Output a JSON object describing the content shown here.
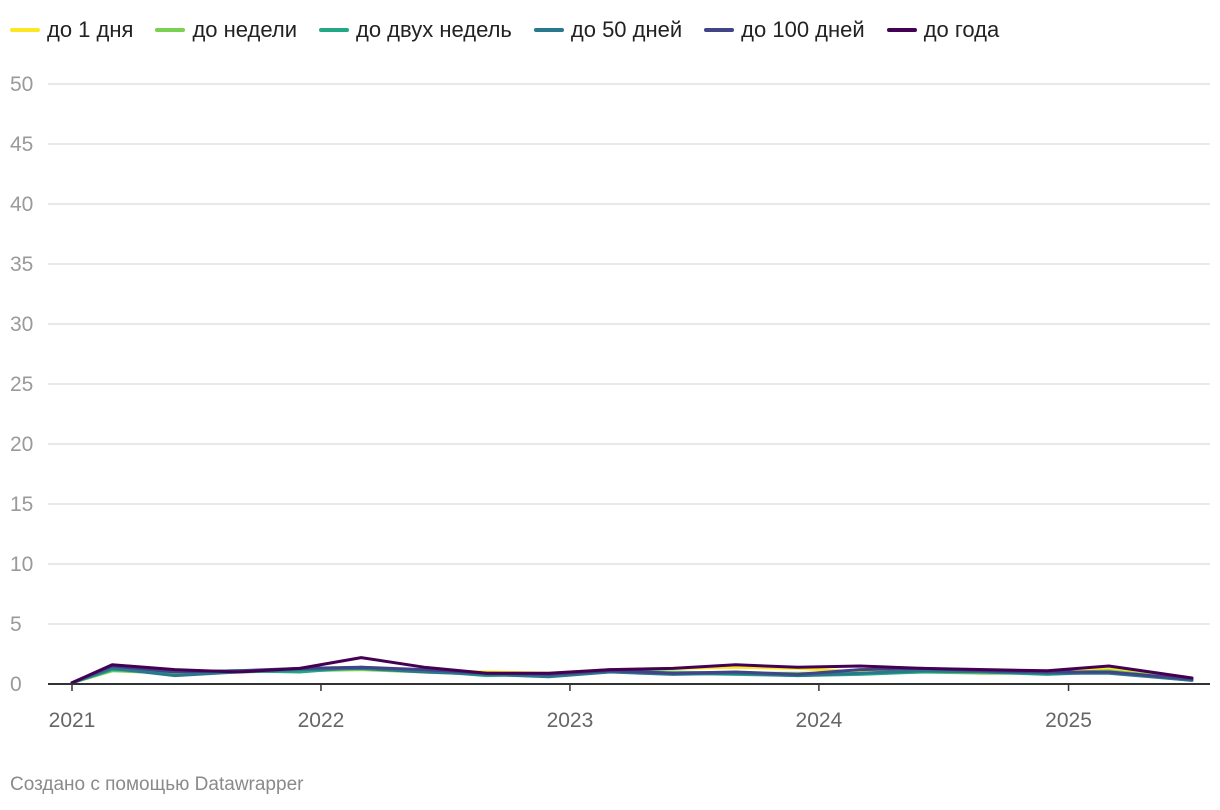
{
  "chart_data": {
    "type": "line",
    "title": "",
    "xlabel": "",
    "ylabel": "",
    "x_range": [
      "2021-01-01",
      "2025-07-01"
    ],
    "ylim": [
      0,
      50
    ],
    "y_ticks": [
      "0",
      "5",
      "10",
      "15",
      "20",
      "25",
      "30",
      "35",
      "40",
      "45",
      "50"
    ],
    "x_ticks": [
      "2021",
      "2022",
      "2023",
      "2024",
      "2025"
    ],
    "grid": true,
    "legend_position": "top-left",
    "series": [
      {
        "name": "до 1 дня",
        "color": "#fde725",
        "points": [
          [
            "2021-01-01",
            0.1
          ],
          [
            "2021-03-01",
            1.2
          ],
          [
            "2021-06-01",
            1.0
          ],
          [
            "2021-09-01",
            1.1
          ],
          [
            "2021-12-01",
            1.2
          ],
          [
            "2022-03-01",
            1.3
          ],
          [
            "2022-06-01",
            1.1
          ],
          [
            "2022-09-01",
            1.0
          ],
          [
            "2022-12-01",
            0.9
          ],
          [
            "2023-03-01",
            1.2
          ],
          [
            "2023-06-01",
            1.3
          ],
          [
            "2023-09-01",
            1.4
          ],
          [
            "2023-12-01",
            1.3
          ],
          [
            "2024-03-01",
            1.0
          ],
          [
            "2024-06-01",
            1.1
          ],
          [
            "2024-09-01",
            1.0
          ],
          [
            "2024-12-01",
            1.0
          ],
          [
            "2025-03-01",
            1.3
          ],
          [
            "2025-07-01",
            0.5
          ]
        ]
      },
      {
        "name": "до недели",
        "color": "#7ad151",
        "points": [
          [
            "2021-01-01",
            0.1
          ],
          [
            "2021-03-01",
            1.1
          ],
          [
            "2021-06-01",
            0.9
          ],
          [
            "2021-09-01",
            1.0
          ],
          [
            "2021-12-01",
            1.1
          ],
          [
            "2022-03-01",
            1.2
          ],
          [
            "2022-06-01",
            1.0
          ],
          [
            "2022-09-01",
            0.8
          ],
          [
            "2022-12-01",
            0.8
          ],
          [
            "2023-03-01",
            1.1
          ],
          [
            "2023-06-01",
            1.0
          ],
          [
            "2023-09-01",
            0.9
          ],
          [
            "2023-12-01",
            0.9
          ],
          [
            "2024-03-01",
            0.9
          ],
          [
            "2024-06-01",
            1.0
          ],
          [
            "2024-09-01",
            0.9
          ],
          [
            "2024-12-01",
            0.9
          ],
          [
            "2025-03-01",
            1.1
          ],
          [
            "2025-07-01",
            0.4
          ]
        ]
      },
      {
        "name": "до двух недель",
        "color": "#22a884",
        "points": [
          [
            "2021-01-01",
            0.1
          ],
          [
            "2021-03-01",
            1.2
          ],
          [
            "2021-06-01",
            1.0
          ],
          [
            "2021-09-01",
            1.1
          ],
          [
            "2021-12-01",
            1.0
          ],
          [
            "2022-03-01",
            1.4
          ],
          [
            "2022-06-01",
            1.1
          ],
          [
            "2022-09-01",
            0.7
          ],
          [
            "2022-12-01",
            0.8
          ],
          [
            "2023-03-01",
            1.2
          ],
          [
            "2023-06-01",
            0.9
          ],
          [
            "2023-09-01",
            0.8
          ],
          [
            "2023-12-01",
            0.7
          ],
          [
            "2024-03-01",
            0.8
          ],
          [
            "2024-06-01",
            1.0
          ],
          [
            "2024-09-01",
            1.0
          ],
          [
            "2024-12-01",
            0.8
          ],
          [
            "2025-03-01",
            1.0
          ],
          [
            "2025-07-01",
            0.3
          ]
        ]
      },
      {
        "name": "до 50 дней",
        "color": "#2a788e",
        "points": [
          [
            "2021-01-01",
            0.1
          ],
          [
            "2021-03-01",
            1.3
          ],
          [
            "2021-06-01",
            0.7
          ],
          [
            "2021-09-01",
            1.0
          ],
          [
            "2021-12-01",
            1.2
          ],
          [
            "2022-03-01",
            1.3
          ],
          [
            "2022-06-01",
            1.0
          ],
          [
            "2022-09-01",
            0.8
          ],
          [
            "2022-12-01",
            0.6
          ],
          [
            "2023-03-01",
            1.0
          ],
          [
            "2023-06-01",
            0.8
          ],
          [
            "2023-09-01",
            0.9
          ],
          [
            "2023-12-01",
            0.7
          ],
          [
            "2024-03-01",
            0.9
          ],
          [
            "2024-06-01",
            1.1
          ],
          [
            "2024-09-01",
            1.0
          ],
          [
            "2024-12-01",
            0.9
          ],
          [
            "2025-03-01",
            0.9
          ],
          [
            "2025-07-01",
            0.3
          ]
        ]
      },
      {
        "name": "до 100 дней",
        "color": "#414487",
        "points": [
          [
            "2021-01-01",
            0.1
          ],
          [
            "2021-03-01",
            1.5
          ],
          [
            "2021-06-01",
            1.0
          ],
          [
            "2021-09-01",
            1.1
          ],
          [
            "2021-12-01",
            1.3
          ],
          [
            "2022-03-01",
            1.4
          ],
          [
            "2022-06-01",
            1.2
          ],
          [
            "2022-09-01",
            0.9
          ],
          [
            "2022-12-01",
            0.8
          ],
          [
            "2023-03-01",
            1.1
          ],
          [
            "2023-06-01",
            0.9
          ],
          [
            "2023-09-01",
            1.0
          ],
          [
            "2023-12-01",
            0.8
          ],
          [
            "2024-03-01",
            1.2
          ],
          [
            "2024-06-01",
            1.3
          ],
          [
            "2024-09-01",
            1.1
          ],
          [
            "2024-12-01",
            1.0
          ],
          [
            "2025-03-01",
            1.0
          ],
          [
            "2025-07-01",
            0.4
          ]
        ]
      },
      {
        "name": "до года",
        "color": "#440154",
        "points": [
          [
            "2021-01-01",
            0.1
          ],
          [
            "2021-03-01",
            1.6
          ],
          [
            "2021-06-01",
            1.2
          ],
          [
            "2021-09-01",
            1.0
          ],
          [
            "2021-12-01",
            1.3
          ],
          [
            "2022-03-01",
            2.2
          ],
          [
            "2022-06-01",
            1.4
          ],
          [
            "2022-09-01",
            0.9
          ],
          [
            "2022-12-01",
            0.9
          ],
          [
            "2023-03-01",
            1.2
          ],
          [
            "2023-06-01",
            1.3
          ],
          [
            "2023-09-01",
            1.6
          ],
          [
            "2023-12-01",
            1.4
          ],
          [
            "2024-03-01",
            1.5
          ],
          [
            "2024-06-01",
            1.3
          ],
          [
            "2024-09-01",
            1.2
          ],
          [
            "2024-12-01",
            1.1
          ],
          [
            "2025-03-01",
            1.5
          ],
          [
            "2025-07-01",
            0.5
          ]
        ]
      }
    ]
  },
  "footer": {
    "credit": "Создано с помощью Datawrapper"
  }
}
